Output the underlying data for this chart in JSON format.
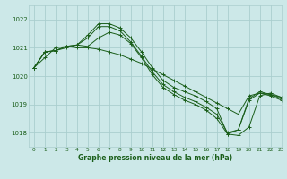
{
  "title": "Graphe pression niveau de la mer (hPa)",
  "bg_color": "#cce8e8",
  "grid_color": "#aacece",
  "line_color": "#1a5e1a",
  "xlim": [
    -0.5,
    23
  ],
  "ylim": [
    1017.5,
    1022.5
  ],
  "yticks": [
    1018,
    1019,
    1020,
    1021,
    1022
  ],
  "xticks": [
    0,
    1,
    2,
    3,
    4,
    5,
    6,
    7,
    8,
    9,
    10,
    11,
    12,
    13,
    14,
    15,
    16,
    17,
    18,
    19,
    20,
    21,
    22,
    23
  ],
  "series": [
    [
      1020.3,
      1020.85,
      1020.9,
      1021.0,
      1021.1,
      1021.45,
      1021.85,
      1021.85,
      1021.7,
      1021.35,
      1020.85,
      1020.3,
      1019.85,
      1019.6,
      1019.45,
      1019.3,
      1019.1,
      1018.85,
      1017.95,
      1017.9,
      1018.2,
      1019.3,
      1019.4,
      1019.25
    ],
    [
      1020.3,
      1020.85,
      1020.9,
      1021.05,
      1021.1,
      1021.35,
      1021.75,
      1021.75,
      1021.6,
      1021.2,
      1020.7,
      1020.15,
      1019.7,
      1019.45,
      1019.25,
      1019.1,
      1018.9,
      1018.65,
      1018.0,
      1018.1,
      1019.2,
      1019.45,
      1019.35,
      1019.2
    ],
    [
      1020.3,
      1020.85,
      1020.9,
      1021.05,
      1021.1,
      1021.05,
      1021.35,
      1021.55,
      1021.45,
      1021.15,
      1020.65,
      1020.05,
      1019.6,
      1019.35,
      1019.15,
      1019.0,
      1018.8,
      1018.5,
      1017.95,
      1018.1,
      1019.15,
      1019.4,
      1019.3,
      1019.15
    ]
  ],
  "series_line": [
    1020.3,
    1020.65,
    1021.0,
    1021.05,
    1021.0,
    1021.0,
    1020.95,
    1020.85,
    1020.75,
    1020.6,
    1020.45,
    1020.25,
    1020.05,
    1019.85,
    1019.65,
    1019.45,
    1019.25,
    1019.05,
    1018.85,
    1018.65,
    1019.3,
    1019.4,
    1019.35,
    1019.25
  ]
}
